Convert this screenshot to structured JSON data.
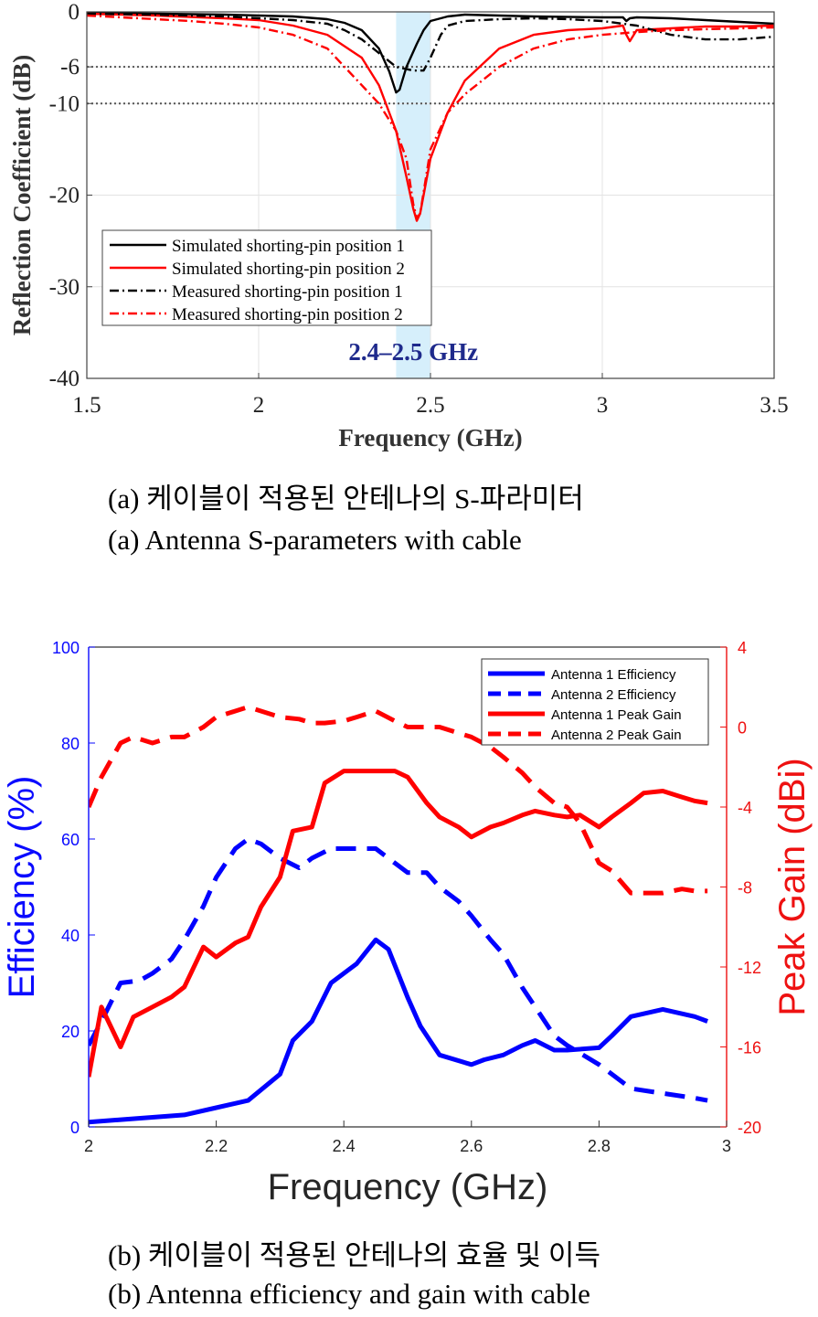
{
  "chart_data": [
    {
      "type": "line",
      "xlabel": "Frequency (GHz)",
      "ylabel": "Reflection Coefficient (dB)",
      "xlim": [
        1.5,
        3.5
      ],
      "ylim": [
        -40,
        0
      ],
      "xticks": [
        "1.5",
        "2",
        "2.5",
        "3",
        "3.5"
      ],
      "yticks": [
        "0",
        "-6",
        "-10",
        "-20",
        "-30",
        "-40"
      ],
      "grid": true,
      "legend_position": "lower-left",
      "reference_lines": [
        -6,
        -10
      ],
      "highlight_band": {
        "x": [
          2.4,
          2.5
        ],
        "label": "2.4–2.5 GHz",
        "color": "#d6effb"
      },
      "series": [
        {
          "name": "Simulated shorting-pin position 1",
          "color": "#000000",
          "style": "solid",
          "x": [
            1.5,
            1.7,
            1.9,
            2.0,
            2.1,
            2.2,
            2.25,
            2.3,
            2.35,
            2.38,
            2.4,
            2.41,
            2.43,
            2.46,
            2.48,
            2.5,
            2.55,
            2.6,
            2.7,
            2.8,
            3.0,
            3.06,
            3.07,
            3.08,
            3.1,
            3.2,
            3.3,
            3.4,
            3.5
          ],
          "y": [
            -0.1,
            -0.2,
            -0.3,
            -0.4,
            -0.5,
            -0.8,
            -1.2,
            -2.0,
            -4.0,
            -6.5,
            -8.8,
            -8.5,
            -6.0,
            -3.5,
            -2.0,
            -1.0,
            -0.5,
            -0.3,
            -0.4,
            -0.5,
            -0.6,
            -0.6,
            -1.0,
            -0.7,
            -0.6,
            -0.7,
            -0.9,
            -1.1,
            -1.3
          ]
        },
        {
          "name": "Simulated shorting-pin position 2",
          "color": "#ff0000",
          "style": "solid",
          "x": [
            1.5,
            1.7,
            1.9,
            2.0,
            2.1,
            2.2,
            2.3,
            2.35,
            2.4,
            2.43,
            2.45,
            2.46,
            2.47,
            2.5,
            2.55,
            2.6,
            2.7,
            2.8,
            2.9,
            3.0,
            3.06,
            3.07,
            3.08,
            3.1,
            3.2,
            3.3,
            3.4,
            3.5
          ],
          "y": [
            -0.2,
            -0.4,
            -0.7,
            -0.9,
            -1.5,
            -2.5,
            -5.0,
            -8.0,
            -13.0,
            -18.0,
            -21.5,
            -22.8,
            -22.0,
            -16.0,
            -11.0,
            -7.5,
            -4.0,
            -2.5,
            -2.0,
            -1.8,
            -1.5,
            -2.5,
            -3.2,
            -2.0,
            -1.8,
            -1.6,
            -1.6,
            -1.5
          ]
        },
        {
          "name": "Measured shorting-pin position 1",
          "color": "#000000",
          "style": "dashdot",
          "x": [
            1.5,
            1.7,
            1.9,
            2.0,
            2.1,
            2.2,
            2.25,
            2.3,
            2.35,
            2.4,
            2.45,
            2.48,
            2.5,
            2.53,
            2.55,
            2.6,
            2.7,
            2.8,
            2.9,
            3.0,
            3.1,
            3.2,
            3.3,
            3.4,
            3.5
          ],
          "y": [
            -0.2,
            -0.3,
            -0.5,
            -0.7,
            -0.9,
            -1.3,
            -2.0,
            -3.0,
            -4.5,
            -6.0,
            -6.4,
            -6.4,
            -5.0,
            -2.5,
            -1.5,
            -1.0,
            -0.8,
            -0.7,
            -0.8,
            -1.0,
            -1.5,
            -2.5,
            -3.0,
            -3.0,
            -2.7
          ]
        },
        {
          "name": "Measured shorting-pin position 2",
          "color": "#ff0000",
          "style": "dashdot",
          "x": [
            1.5,
            1.6,
            1.7,
            1.8,
            1.9,
            2.0,
            2.1,
            2.2,
            2.25,
            2.3,
            2.35,
            2.4,
            2.43,
            2.45,
            2.46,
            2.47,
            2.5,
            2.55,
            2.6,
            2.7,
            2.8,
            2.9,
            3.0,
            3.1,
            3.2,
            3.3,
            3.4,
            3.5
          ],
          "y": [
            -0.4,
            -0.6,
            -0.8,
            -1.0,
            -1.3,
            -1.7,
            -2.5,
            -4.0,
            -6.0,
            -8.0,
            -10.0,
            -13.0,
            -16.0,
            -21.0,
            -22.5,
            -22.0,
            -15.0,
            -11.0,
            -9.0,
            -6.0,
            -4.0,
            -3.0,
            -2.5,
            -2.2,
            -2.0,
            -1.9,
            -1.8,
            -1.7
          ]
        }
      ]
    },
    {
      "type": "line",
      "xlabel": "Frequency (GHz)",
      "ylabel": "Efficiency (%)",
      "y2label": "Peak Gain (dBi)",
      "xlim": [
        2,
        3
      ],
      "ylim": [
        0,
        100
      ],
      "y2lim": [
        -20,
        4
      ],
      "xticks": [
        "2",
        "2.2",
        "2.4",
        "2.6",
        "2.8",
        "3"
      ],
      "yticks": [
        "0",
        "20",
        "40",
        "60",
        "80",
        "100"
      ],
      "y2ticks": [
        "-20",
        "-16",
        "-12",
        "-8",
        "-4",
        "0",
        "4"
      ],
      "legend_position": "top-right",
      "series": [
        {
          "name": "Antenna 1 Efficiency",
          "axis": "left",
          "color": "#0000ff",
          "style": "solid",
          "x": [
            2.0,
            2.05,
            2.1,
            2.15,
            2.2,
            2.25,
            2.3,
            2.32,
            2.35,
            2.38,
            2.4,
            2.42,
            2.45,
            2.47,
            2.5,
            2.52,
            2.55,
            2.6,
            2.62,
            2.65,
            2.68,
            2.7,
            2.73,
            2.75,
            2.8,
            2.82,
            2.85,
            2.9,
            2.95,
            2.97
          ],
          "y": [
            1,
            1.5,
            2,
            2.5,
            4,
            5.5,
            11,
            18,
            22,
            30,
            32,
            34,
            39,
            37,
            27,
            21,
            15,
            13,
            14,
            15,
            17,
            18,
            16,
            16,
            16.5,
            19,
            23,
            24.5,
            23,
            22
          ]
        },
        {
          "name": "Antenna 2 Efficiency",
          "axis": "left",
          "color": "#0000ff",
          "style": "dashed",
          "x": [
            2.0,
            2.02,
            2.05,
            2.08,
            2.1,
            2.13,
            2.15,
            2.18,
            2.2,
            2.23,
            2.25,
            2.27,
            2.3,
            2.33,
            2.35,
            2.38,
            2.4,
            2.42,
            2.45,
            2.48,
            2.5,
            2.53,
            2.55,
            2.58,
            2.6,
            2.63,
            2.65,
            2.68,
            2.7,
            2.73,
            2.75,
            2.8,
            2.85,
            2.9,
            2.95,
            2.97
          ],
          "y": [
            17,
            22,
            30,
            30.5,
            32,
            35,
            39,
            46,
            52,
            58,
            60,
            59,
            56,
            54,
            56,
            58,
            58,
            58,
            58,
            55,
            53,
            53,
            50,
            47,
            44,
            39,
            36,
            29,
            25,
            19,
            17,
            13,
            8,
            7,
            6,
            5.5
          ]
        },
        {
          "name": "Antenna 1 Peak Gain",
          "axis": "right",
          "color": "#ff0000",
          "style": "solid",
          "x": [
            2.0,
            2.02,
            2.05,
            2.07,
            2.1,
            2.13,
            2.15,
            2.18,
            2.2,
            2.23,
            2.25,
            2.27,
            2.3,
            2.32,
            2.35,
            2.37,
            2.4,
            2.43,
            2.45,
            2.48,
            2.5,
            2.53,
            2.55,
            2.58,
            2.6,
            2.63,
            2.65,
            2.68,
            2.7,
            2.73,
            2.75,
            2.77,
            2.8,
            2.82,
            2.85,
            2.87,
            2.9,
            2.93,
            2.95,
            2.97
          ],
          "y": [
            -17.5,
            -14,
            -16,
            -14.5,
            -14,
            -13.5,
            -13,
            -11,
            -11.5,
            -10.8,
            -10.5,
            -9,
            -7.5,
            -5.2,
            -5,
            -2.8,
            -2.2,
            -2.2,
            -2.2,
            -2.2,
            -2.5,
            -3.8,
            -4.5,
            -5,
            -5.5,
            -5,
            -4.8,
            -4.4,
            -4.2,
            -4.4,
            -4.5,
            -4.4,
            -5,
            -4.5,
            -3.8,
            -3.3,
            -3.2,
            -3.5,
            -3.7,
            -3.8
          ]
        },
        {
          "name": "Antenna 2 Peak Gain",
          "axis": "right",
          "color": "#ff0000",
          "style": "dashed",
          "x": [
            2.0,
            2.02,
            2.05,
            2.07,
            2.1,
            2.13,
            2.15,
            2.18,
            2.2,
            2.23,
            2.25,
            2.27,
            2.3,
            2.33,
            2.35,
            2.37,
            2.4,
            2.42,
            2.45,
            2.48,
            2.5,
            2.53,
            2.55,
            2.58,
            2.6,
            2.63,
            2.65,
            2.68,
            2.7,
            2.73,
            2.75,
            2.77,
            2.8,
            2.82,
            2.85,
            2.87,
            2.9,
            2.93,
            2.95,
            2.97
          ],
          "y": [
            -4,
            -2.5,
            -0.8,
            -0.5,
            -0.8,
            -0.5,
            -0.5,
            0,
            0.5,
            0.8,
            1,
            0.8,
            0.5,
            0.4,
            0.2,
            0.2,
            0.3,
            0.5,
            0.8,
            0.3,
            0,
            0,
            0,
            -0.3,
            -0.5,
            -1,
            -1.5,
            -2.3,
            -3,
            -3.8,
            -4,
            -4.8,
            -6.8,
            -7.2,
            -8.3,
            -8.3,
            -8.3,
            -8.1,
            -8.2,
            -8.2
          ]
        }
      ]
    }
  ],
  "captions": {
    "a_ko": "(a) 케이블이 적용된 안테나의 S-파라미터",
    "a_en": "(a) Antenna S-parameters with cable",
    "b_ko": "(b) 케이블이 적용된 안테나의 효율 및 이득",
    "b_en": "(b) Antenna efficiency and gain with cable"
  }
}
